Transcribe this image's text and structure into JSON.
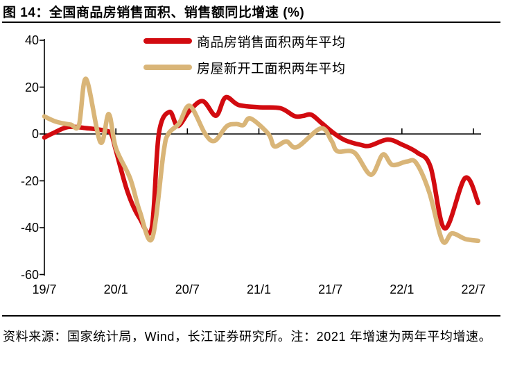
{
  "figure": {
    "title": "图 14：全国商品房销售面积、销售额同比增速 (%)",
    "source_note": "资料来源：国家统计局，Wind，长江证券研究所。注：2021 年增速为两年平均增速。"
  },
  "colors": {
    "text": "#000000",
    "rule": "#000000",
    "axis": "#000000",
    "background": "#ffffff",
    "series_red": "#d20b10",
    "series_tan": "#d9b578"
  },
  "chart_data": {
    "type": "line",
    "title": "图 14：全国商品房销售面积、销售额同比增速 (%)",
    "grid": false,
    "legend_position": "top-center",
    "x_axis": {
      "unit": "year/month",
      "tick_labels": [
        "19/7",
        "20/1",
        "20/7",
        "21/1",
        "21/7",
        "22/1",
        "22/7"
      ],
      "months_per_tick": 6,
      "range_months": [
        0,
        36
      ],
      "note": "t = months since 2019/7"
    },
    "y_axis": {
      "ticks": [
        40,
        20,
        0,
        -20,
        -40,
        -60
      ],
      "ylim": [
        -60,
        40
      ],
      "unit": "%"
    },
    "series": [
      {
        "name": "商品房销售面积两年平均",
        "color": "#d20b10",
        "points": [
          [
            0,
            -1.5
          ],
          [
            0.8,
            0.5
          ],
          [
            2,
            3
          ],
          [
            3.5,
            2.5
          ],
          [
            5,
            1.5
          ],
          [
            5.6,
            0
          ],
          [
            6,
            -7
          ],
          [
            7,
            -25
          ],
          [
            8,
            -36
          ],
          [
            9,
            -40.3
          ],
          [
            9.6,
            0
          ],
          [
            10.5,
            9.4
          ],
          [
            11.2,
            3.4
          ],
          [
            12.2,
            10
          ],
          [
            13.3,
            14
          ],
          [
            14.4,
            7.8
          ],
          [
            15.2,
            15.6
          ],
          [
            16.3,
            12.4
          ],
          [
            18,
            11.4
          ],
          [
            19.8,
            11
          ],
          [
            21,
            7.6
          ],
          [
            21.7,
            7.7
          ],
          [
            22.4,
            8.2
          ],
          [
            23.3,
            4.5
          ],
          [
            24.3,
            0.3
          ],
          [
            25.2,
            -2.6
          ],
          [
            26.5,
            -4.6
          ],
          [
            27.3,
            -5
          ],
          [
            28.8,
            -2.4
          ],
          [
            30,
            -4.5
          ],
          [
            31.3,
            -8
          ],
          [
            32.4,
            -14
          ],
          [
            33.6,
            -40.3
          ],
          [
            35.3,
            -18.8
          ],
          [
            36.4,
            -29.4
          ]
        ]
      },
      {
        "name": "房屋新开工面积两年平均",
        "color": "#d9b578",
        "points": [
          [
            0,
            7.5
          ],
          [
            1,
            5.2
          ],
          [
            2.2,
            4
          ],
          [
            2.9,
            3.8
          ],
          [
            3.5,
            23.5
          ],
          [
            4.7,
            -3.5
          ],
          [
            5.4,
            8.5
          ],
          [
            6,
            -6
          ],
          [
            7.2,
            -19
          ],
          [
            8,
            -33
          ],
          [
            9.05,
            -44.5
          ],
          [
            10,
            -8
          ],
          [
            10.4,
            0
          ],
          [
            11.3,
            4.5
          ],
          [
            12.2,
            12
          ],
          [
            13.5,
            0
          ],
          [
            14.3,
            -2.9
          ],
          [
            15.3,
            3.3
          ],
          [
            16.1,
            4.2
          ],
          [
            16.7,
            3.8
          ],
          [
            17.3,
            6.6
          ],
          [
            18.8,
            0
          ],
          [
            19.3,
            -5.3
          ],
          [
            20.3,
            -3.2
          ],
          [
            21.2,
            -5.6
          ],
          [
            23.2,
            2.4
          ],
          [
            24.1,
            -3
          ],
          [
            24.6,
            -7.4
          ],
          [
            26,
            -7.9
          ],
          [
            27.4,
            -17.4
          ],
          [
            28.4,
            -8.8
          ],
          [
            29.2,
            -13.2
          ],
          [
            30.4,
            -11.8
          ],
          [
            31.2,
            -12.4
          ],
          [
            32.3,
            -25
          ],
          [
            33.4,
            -45.6
          ],
          [
            34.2,
            -42.4
          ],
          [
            35.3,
            -44.8
          ],
          [
            36.4,
            -45.6
          ]
        ]
      }
    ]
  }
}
